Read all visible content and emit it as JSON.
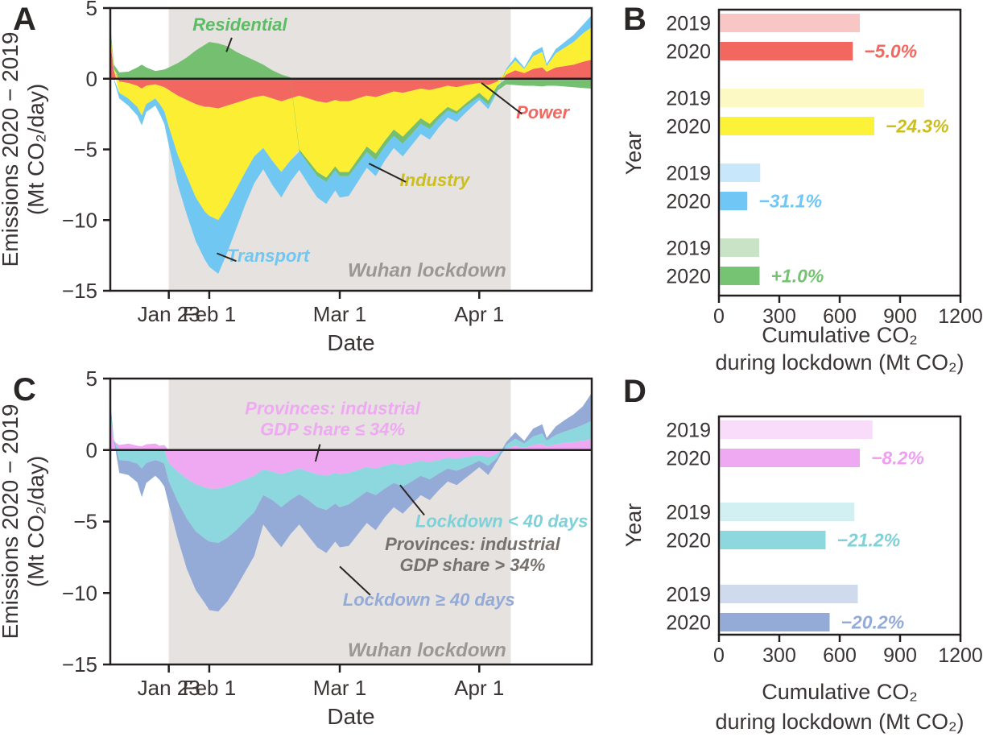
{
  "figure": {
    "background": "#ffffff",
    "axis_color": "#231f20",
    "text_color": "#3a3534",
    "shade_color": "#e5e2df",
    "shade_text_color": "#9b9794"
  },
  "chart_data": [
    {
      "id": "A",
      "type": "area",
      "ylabel_lines": [
        "Emissions 2020 − 2019",
        "(Mt CO₂/day)"
      ],
      "xlabel": "Date",
      "ylim": [
        -15,
        5
      ],
      "yticks": [
        5,
        0,
        -5,
        -10,
        -15
      ],
      "x_domain_days": [
        0,
        107
      ],
      "xticks": [
        {
          "day": 13,
          "label": "Jan 23"
        },
        {
          "day": 22,
          "label": "Feb 1"
        },
        {
          "day": 51,
          "label": "Mar 1"
        },
        {
          "day": 82,
          "label": "Apr 1"
        }
      ],
      "lockdown_shade": {
        "from_day": 13,
        "to_day": 89,
        "label": "Wuhan lockdown",
        "label_day": 88,
        "label_value": -14.0
      },
      "days": [
        0,
        0.8,
        2,
        4,
        6,
        7,
        8,
        10,
        11,
        12,
        13,
        15,
        17,
        19,
        21,
        22,
        24,
        26,
        28,
        30,
        32,
        34,
        36,
        38,
        40,
        42,
        44,
        46,
        48,
        50,
        51,
        53,
        55,
        57,
        59,
        61,
        63,
        65,
        67,
        69,
        71,
        73,
        75,
        77,
        79,
        81,
        82,
        84,
        86,
        88,
        90,
        92,
        94,
        96,
        97,
        99,
        101,
        103,
        105,
        107
      ],
      "series": [
        {
          "name": "Power",
          "color": "#f2675f",
          "values": [
            2.6,
            0.6,
            -0.2,
            -0.3,
            -0.5,
            -0.7,
            -0.5,
            -0.4,
            -0.5,
            -0.6,
            -0.8,
            -1.2,
            -1.5,
            -1.8,
            -2.0,
            -2.0,
            -2.1,
            -1.9,
            -1.7,
            -1.5,
            -1.3,
            -1.2,
            -1.4,
            -1.6,
            -1.4,
            -1.2,
            -1.4,
            -1.6,
            -1.7,
            -1.5,
            -1.6,
            -1.6,
            -1.4,
            -1.2,
            -1.3,
            -1.1,
            -0.9,
            -1.0,
            -0.85,
            -0.7,
            -0.8,
            -0.65,
            -0.5,
            -0.6,
            -0.45,
            -0.35,
            -0.3,
            -0.45,
            -0.2,
            0.3,
            0.6,
            0.4,
            0.7,
            0.8,
            0.5,
            0.8,
            0.9,
            1.0,
            1.2,
            1.35
          ]
        },
        {
          "name": "Industry",
          "color": "#fbee33",
          "values": [
            1.0,
            0.1,
            -0.8,
            -1.1,
            -1.5,
            -1.9,
            -1.3,
            -1.0,
            -1.3,
            -1.7,
            -2.6,
            -4.2,
            -5.4,
            -6.6,
            -7.4,
            -7.7,
            -7.9,
            -7.1,
            -6.1,
            -5.1,
            -4.2,
            -3.7,
            -4.4,
            -5.0,
            -4.4,
            -3.8,
            -4.4,
            -5.0,
            -5.3,
            -4.7,
            -5.0,
            -5.0,
            -4.3,
            -3.6,
            -4.0,
            -3.3,
            -2.7,
            -3.1,
            -2.6,
            -2.1,
            -2.4,
            -1.9,
            -1.5,
            -1.7,
            -1.3,
            -0.9,
            -0.7,
            -1.1,
            -0.3,
            0.3,
            0.7,
            0.3,
            0.9,
            1.1,
            0.4,
            1.0,
            1.3,
            1.6,
            2.0,
            2.3
          ]
        },
        {
          "name": "Residential",
          "color": "#74bf70",
          "values": [
            0.15,
            0.3,
            0.45,
            0.5,
            0.8,
            1.0,
            0.8,
            0.55,
            0.6,
            0.65,
            0.8,
            1.1,
            1.5,
            2.0,
            2.4,
            2.6,
            2.5,
            2.3,
            1.9,
            1.6,
            1.3,
            1.0,
            0.6,
            0.3,
            0.1,
            -0.15,
            -0.25,
            -0.3,
            -0.3,
            -0.3,
            -0.3,
            -0.3,
            -0.35,
            -0.4,
            -0.45,
            -0.4,
            -0.45,
            -0.5,
            -0.45,
            -0.4,
            -0.35,
            -0.3,
            -0.25,
            -0.2,
            -0.2,
            -0.25,
            -0.3,
            -0.3,
            -0.35,
            -0.4,
            -0.45,
            -0.5,
            -0.5,
            -0.55,
            -0.5,
            -0.5,
            -0.55,
            -0.6,
            -0.65,
            -0.7
          ]
        },
        {
          "name": "Transport",
          "color": "#6fc7f2",
          "values": [
            0.35,
            -0.1,
            -0.4,
            -0.5,
            -0.6,
            -0.7,
            -0.55,
            -0.5,
            -0.7,
            -0.9,
            -1.3,
            -2.1,
            -2.7,
            -3.1,
            -3.4,
            -3.6,
            -3.8,
            -3.3,
            -2.8,
            -2.3,
            -1.9,
            -1.5,
            -1.7,
            -1.8,
            -1.5,
            -1.3,
            -1.4,
            -1.5,
            -1.55,
            -1.4,
            -1.5,
            -1.4,
            -1.25,
            -1.1,
            -1.15,
            -1.0,
            -0.85,
            -0.9,
            -0.8,
            -0.7,
            -0.75,
            -0.6,
            -0.5,
            -0.55,
            -0.45,
            -0.3,
            -0.2,
            -0.3,
            -0.1,
            0.1,
            0.25,
            0.1,
            0.3,
            0.35,
            0.15,
            0.3,
            0.4,
            0.5,
            0.6,
            0.85
          ]
        }
      ],
      "annotations": [
        {
          "text": [
            "Residential"
          ],
          "color": "#5bbd63",
          "x_day": 28.8,
          "y": 3.4,
          "leader": [
            27.0,
            2.9,
            25.8,
            1.9
          ]
        },
        {
          "text": [
            "Power"
          ],
          "color": "#f2675f",
          "x_day": 96.1,
          "y": -2.8,
          "leader": [
            91.5,
            -2.5,
            82.5,
            -0.3
          ]
        },
        {
          "text": [
            "Industry"
          ],
          "color": "#cdbf19",
          "x_day": 72.1,
          "y": -7.6,
          "leader": [
            65.7,
            -7.3,
            57.5,
            -6.0
          ]
        },
        {
          "text": [
            "Transport"
          ],
          "color": "#6fc7f2",
          "x_day": 35.1,
          "y": -12.95,
          "leader": [
            28.0,
            -12.9,
            23.7,
            -12.35
          ]
        }
      ]
    },
    {
      "id": "B",
      "type": "bar",
      "ylabel": "Year",
      "xlabel_lines": [
        "Cumulative CO₂",
        "during lockdown (Mt CO₂)"
      ],
      "xlim": [
        0,
        1200
      ],
      "xticks": [
        0,
        300,
        600,
        900,
        1200
      ],
      "year_labels": [
        "2019",
        "2020"
      ],
      "groups": [
        {
          "name": "Power",
          "value_2019": 700,
          "value_2020": 665,
          "change_label": "−5.0%",
          "color_2019": "#f9c6c6",
          "color_2020": "#f2675f",
          "label_color": "#f2675f"
        },
        {
          "name": "Industry",
          "value_2019": 1020,
          "value_2020": 772,
          "change_label": "−24.3%",
          "color_2019": "#fdf9c5",
          "color_2020": "#fcf338",
          "label_color": "#cdbf19"
        },
        {
          "name": "Transport",
          "value_2019": 205,
          "value_2020": 141,
          "change_label": "−31.1%",
          "color_2019": "#c9e7fa",
          "color_2020": "#70c6f5",
          "label_color": "#70c6f5"
        },
        {
          "name": "Residential",
          "value_2019": 200,
          "value_2020": 202,
          "change_label": "+1.0%",
          "color_2019": "#c9e3c6",
          "color_2020": "#77c374",
          "label_color": "#77c374"
        }
      ]
    },
    {
      "id": "C",
      "type": "area",
      "ylabel_lines": [
        "Emissions 2020 − 2019",
        "(Mt CO₂/day)"
      ],
      "xlabel": "Date",
      "ylim": [
        -15,
        5
      ],
      "yticks": [
        5,
        0,
        -5,
        -10,
        -15
      ],
      "x_domain_days": [
        0,
        107
      ],
      "xticks": [
        {
          "day": 13,
          "label": "Jan 23"
        },
        {
          "day": 22,
          "label": "Feb 1"
        },
        {
          "day": 51,
          "label": "Mar 1"
        },
        {
          "day": 82,
          "label": "Apr 1"
        }
      ],
      "lockdown_shade": {
        "from_day": 13,
        "to_day": 89,
        "label": "Wuhan lockdown",
        "label_day": 88,
        "label_value": -14.45
      },
      "days": [
        0,
        0.8,
        2,
        4,
        6,
        7,
        8,
        10,
        11,
        12,
        13,
        15,
        17,
        19,
        21,
        22,
        24,
        26,
        28,
        30,
        32,
        34,
        36,
        38,
        40,
        42,
        44,
        46,
        48,
        50,
        51,
        53,
        55,
        57,
        59,
        61,
        63,
        65,
        67,
        69,
        71,
        73,
        75,
        77,
        79,
        81,
        82,
        84,
        86,
        88,
        90,
        92,
        94,
        96,
        97,
        99,
        101,
        103,
        105,
        107
      ],
      "series": [
        {
          "name": "Provinces: industrial GDP share ≤ 34%",
          "short": "gdp-le-34",
          "color": "#efa9f3",
          "values": [
            2.2,
            0.6,
            0.35,
            0.45,
            0.3,
            0.25,
            0.4,
            0.45,
            0.3,
            0.35,
            -0.9,
            -1.5,
            -2.0,
            -2.4,
            -2.6,
            -2.7,
            -2.7,
            -2.55,
            -2.3,
            -2.05,
            -1.8,
            -1.35,
            -1.5,
            -1.7,
            -1.5,
            -1.3,
            -1.5,
            -1.7,
            -1.8,
            -1.6,
            -1.7,
            -1.6,
            -1.4,
            -1.2,
            -1.3,
            -1.1,
            -0.95,
            -1.05,
            -0.9,
            -0.75,
            -0.85,
            -0.7,
            -0.55,
            -0.6,
            -0.5,
            -0.4,
            -0.35,
            -0.5,
            -0.25,
            0.1,
            0.3,
            0.15,
            0.35,
            0.45,
            0.25,
            0.4,
            0.5,
            0.55,
            0.65,
            0.75
          ]
        },
        {
          "name": "Lockdown < 40 days",
          "short": "lockdown-lt-40",
          "color": "#8dd8de",
          "values": [
            0.7,
            0.1,
            -0.7,
            -0.75,
            -0.95,
            -1.3,
            -0.9,
            -0.7,
            -0.8,
            -0.95,
            -1.3,
            -2.1,
            -2.8,
            -3.3,
            -3.6,
            -3.7,
            -3.8,
            -3.6,
            -3.3,
            -2.9,
            -2.55,
            -1.8,
            -2.0,
            -2.3,
            -2.0,
            -1.8,
            -2.0,
            -2.3,
            -2.4,
            -2.15,
            -2.3,
            -2.2,
            -1.95,
            -1.7,
            -1.85,
            -1.6,
            -1.35,
            -1.5,
            -1.3,
            -1.05,
            -1.2,
            -0.95,
            -0.75,
            -0.85,
            -0.7,
            -0.5,
            -0.4,
            -0.6,
            -0.3,
            0.25,
            0.5,
            0.3,
            0.6,
            0.7,
            0.4,
            0.65,
            0.8,
            0.95,
            1.1,
            1.3
          ]
        },
        {
          "name": "Lockdown ≥ 40 days",
          "short": "lockdown-ge-40",
          "color": "#94aad7",
          "values": [
            0.45,
            0.05,
            -0.9,
            -1.0,
            -1.3,
            -2.0,
            -1.4,
            -1.1,
            -1.3,
            -1.6,
            -1.6,
            -2.6,
            -3.5,
            -4.1,
            -4.5,
            -4.8,
            -4.8,
            -4.45,
            -4.0,
            -3.55,
            -3.05,
            -2.05,
            -2.55,
            -2.8,
            -2.4,
            -2.1,
            -2.5,
            -2.8,
            -3.0,
            -2.65,
            -2.8,
            -2.9,
            -2.55,
            -2.2,
            -2.45,
            -2.0,
            -1.7,
            -1.9,
            -1.6,
            -1.35,
            -1.45,
            -1.15,
            -0.9,
            -1.0,
            -0.75,
            -0.55,
            -0.45,
            -0.65,
            -0.2,
            0.2,
            0.45,
            0.2,
            0.55,
            0.65,
            0.2,
            0.6,
            0.8,
            1.0,
            1.3,
            1.95
          ]
        }
      ],
      "annotations": [
        {
          "text": [
            "Provinces: industrial",
            "GDP share ≤ 34%"
          ],
          "color": "#efa9f3",
          "x_day": 49.4,
          "y": 2.5,
          "leader": [
            46.6,
            0.4,
            45.6,
            -0.8
          ]
        },
        {
          "text": [
            "Lockdown < 40 days"
          ],
          "color": "#7dd2d9",
          "x_day": 87.0,
          "y": -5.4,
          "leader": [
            69.8,
            -4.55,
            64.4,
            -2.45
          ]
        },
        {
          "text": [
            "Provinces: industrial",
            "GDP share > 34%"
          ],
          "color": "#77716e",
          "x_day": 80.5,
          "y": -7.0,
          "leader": null
        },
        {
          "text": [
            "Lockdown ≥ 40 days"
          ],
          "color": "#94aad7",
          "x_day": 70.8,
          "y": -10.9,
          "leader": [
            57.8,
            -10.15,
            51.0,
            -8.15
          ]
        }
      ]
    },
    {
      "id": "D",
      "type": "bar",
      "ylabel": "Year",
      "xlabel_lines": [
        "Cumulative CO₂",
        "during lockdown (Mt CO₂)"
      ],
      "xlim": [
        0,
        1200
      ],
      "xticks": [
        0,
        300,
        600,
        900,
        1200
      ],
      "year_labels": [
        "2019",
        "2020"
      ],
      "groups": [
        {
          "name": "Provinces: industrial GDP share ≤ 34%",
          "value_2019": 763,
          "value_2020": 700,
          "change_label": "−8.2%",
          "color_2019": "#f8dcfa",
          "color_2020": "#efa9f3",
          "label_color": "#ee9ff2"
        },
        {
          "name": "Lockdown < 40 days",
          "value_2019": 673,
          "value_2020": 530,
          "change_label": "−21.2%",
          "color_2019": "#d2f0f2",
          "color_2020": "#8dd8de",
          "label_color": "#7dd2d9"
        },
        {
          "name": "Lockdown ≥ 40 days",
          "value_2019": 690,
          "value_2020": 550,
          "change_label": "−20.2%",
          "color_2019": "#cfdaed",
          "color_2020": "#94aad7",
          "label_color": "#94aad7"
        }
      ]
    }
  ]
}
